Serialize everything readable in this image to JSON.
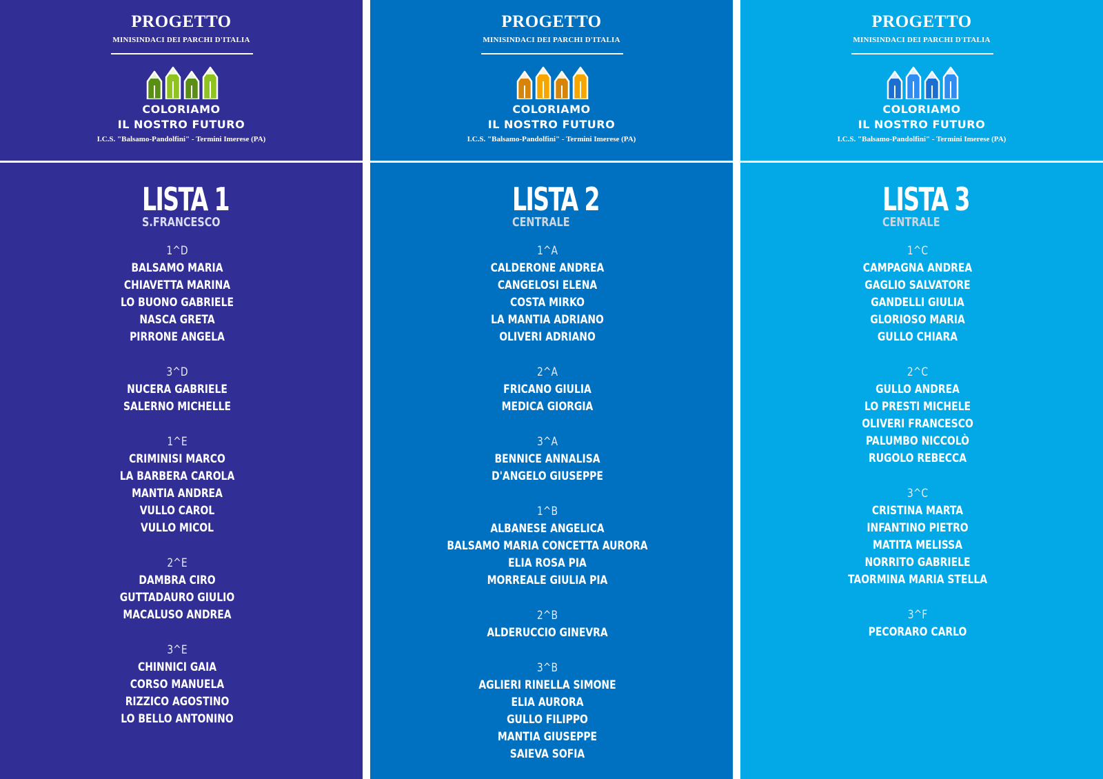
{
  "header": {
    "project": "PROGETTO",
    "subtitle": "MINISINDACI DEI PARCHI D'ITALIA",
    "motto_line1": "COLORIAMO",
    "motto_line2": "IL NOSTRO FUTURO",
    "school": "I.C.S. \"Balsamo-Pandolfini\" - Termini Imerese (PA)"
  },
  "colors": {
    "panel_bg": [
      "#312e95",
      "#0071c1",
      "#03a9e6"
    ],
    "crayon_dark": [
      "#5a8f16",
      "#d6850a",
      "#1b6fd1"
    ],
    "crayon_light": [
      "#8fc31f",
      "#f7a600",
      "#2f8cf0"
    ]
  },
  "lists": [
    {
      "title": "LISTA 1",
      "location": "S.FRANCESCO",
      "groups": [
        {
          "class": "1^D",
          "students": [
            "BALSAMO MARIA",
            "CHIAVETTA MARINA",
            "LO BUONO GABRIELE",
            "NASCA GRETA",
            "PIRRONE ANGELA"
          ]
        },
        {
          "class": "3^D",
          "students": [
            "NUCERA GABRIELE",
            "SALERNO MICHELLE"
          ]
        },
        {
          "class": "1^E",
          "students": [
            "CRIMINISI MARCO",
            "LA BARBERA CAROLA",
            "MANTIA ANDREA",
            "VULLO CAROL",
            "VULLO MICOL"
          ]
        },
        {
          "class": "2^E",
          "students": [
            "DAMBRA CIRO",
            "GUTTADAURO GIULIO",
            "MACALUSO ANDREA"
          ]
        },
        {
          "class": "3^E",
          "students": [
            "CHINNICI GAIA",
            "CORSO MANUELA",
            "RIZZICO AGOSTINO",
            "LO BELLO ANTONINO"
          ]
        }
      ]
    },
    {
      "title": "LISTA 2",
      "location": "CENTRALE",
      "groups": [
        {
          "class": "1^A",
          "students": [
            "CALDERONE ANDREA",
            "CANGELOSI ELENA",
            "COSTA MIRKO",
            "LA MANTIA ADRIANO",
            "OLIVERI ADRIANO"
          ]
        },
        {
          "class": "2^A",
          "students": [
            "FRICANO GIULIA",
            "MEDICA GIORGIA"
          ]
        },
        {
          "class": "3^A",
          "students": [
            "BENNICE ANNALISA",
            "D'ANGELO GIUSEPPE"
          ]
        },
        {
          "class": "1^B",
          "students": [
            "ALBANESE ANGELICA",
            "BALSAMO MARIA CONCETTA AURORA",
            "ELIA ROSA PIA",
            "MORREALE GIULIA PIA"
          ]
        },
        {
          "class": "2^B",
          "students": [
            "ALDERUCCIO GINEVRA"
          ]
        },
        {
          "class": "3^B",
          "students": [
            "AGLIERI RINELLA SIMONE",
            "ELIA AURORA",
            "GULLO FILIPPO",
            "MANTIA GIUSEPPE",
            "SAIEVA SOFIA"
          ]
        }
      ]
    },
    {
      "title": "LISTA 3",
      "location": "CENTRALE",
      "groups": [
        {
          "class": "1^C",
          "students": [
            "CAMPAGNA ANDREA",
            "GAGLIO SALVATORE",
            "GANDELLI GIULIA",
            "GLORIOSO MARIA",
            "GULLO CHIARA"
          ]
        },
        {
          "class": "2^C",
          "students": [
            "GULLO ANDREA",
            "LO PRESTI MICHELE",
            "OLIVERI FRANCESCO",
            "PALUMBO NICCOLÒ",
            "RUGOLO REBECCA"
          ]
        },
        {
          "class": "3^C",
          "students": [
            "CRISTINA MARTA",
            "INFANTINO PIETRO",
            "MATITA MELISSA",
            "NORRITO GABRIELE",
            "TAORMINA MARIA STELLA"
          ]
        },
        {
          "class": "3^F",
          "students": [
            "PECORARO CARLO"
          ]
        }
      ]
    }
  ]
}
